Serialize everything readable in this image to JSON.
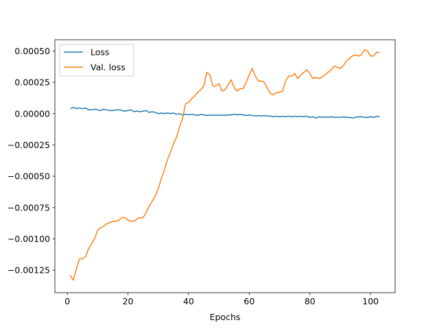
{
  "chart_data": {
    "type": "line",
    "title": "",
    "xlabel": "Epochs",
    "ylabel": "",
    "xlim": [
      -4.1,
      108.1
    ],
    "ylim": [
      -0.00143,
      0.00059
    ],
    "x_ticks": [
      0,
      20,
      40,
      60,
      80,
      100
    ],
    "x_tick_labels": [
      "0",
      "20",
      "40",
      "60",
      "80",
      "100"
    ],
    "y_ticks": [
      -0.00125,
      -0.001,
      -0.00075,
      -0.0005,
      -0.00025,
      0,
      0.00025,
      0.0005
    ],
    "y_tick_labels": [
      "−0.00125",
      "−0.00100",
      "−0.00075",
      "−0.00050",
      "−0.00025",
      "0.00000",
      "0.00025",
      "0.00050"
    ],
    "grid": false,
    "legend_position": "top-left",
    "series": [
      {
        "name": "Loss",
        "color": "#1f77b4",
        "x": [
          1,
          2,
          3,
          4,
          5,
          6,
          7,
          8,
          9,
          10,
          11,
          12,
          13,
          14,
          15,
          16,
          17,
          18,
          19,
          20,
          21,
          22,
          23,
          24,
          25,
          26,
          27,
          28,
          29,
          30,
          31,
          32,
          33,
          34,
          35,
          36,
          37,
          38,
          39,
          40,
          41,
          42,
          43,
          44,
          45,
          46,
          47,
          48,
          49,
          50,
          51,
          52,
          53,
          54,
          55,
          56,
          57,
          58,
          59,
          60,
          61,
          62,
          63,
          64,
          65,
          66,
          67,
          68,
          69,
          70,
          71,
          72,
          73,
          74,
          75,
          76,
          77,
          78,
          79,
          80,
          81,
          82,
          83,
          84,
          85,
          86,
          87,
          88,
          89,
          90,
          91,
          92,
          93,
          94,
          95,
          96,
          97,
          98,
          99,
          100,
          101,
          102,
          103
        ],
        "y": [
          4e-05,
          5e-05,
          4e-05,
          4.5e-05,
          4e-05,
          4.5e-05,
          3e-05,
          3e-05,
          3.5e-05,
          3e-05,
          2.5e-05,
          3.5e-05,
          3e-05,
          2.5e-05,
          2.5e-05,
          3e-05,
          3e-05,
          2.5e-05,
          2e-05,
          2.5e-05,
          3e-05,
          1.5e-05,
          2e-05,
          1.5e-05,
          2e-05,
          2.5e-05,
          1e-05,
          1.5e-05,
          1e-05,
          0.0,
          5e-06,
          0.0,
          5e-06,
          0.0,
          5e-06,
          -5e-06,
          0.0,
          -1e-05,
          -5e-06,
          -1e-05,
          -5e-06,
          -1e-05,
          -1.5e-05,
          -5e-06,
          -1e-05,
          -1.5e-05,
          -1e-05,
          -1.5e-05,
          -1e-05,
          -1.5e-05,
          -1e-05,
          -1.5e-05,
          -1e-05,
          -1e-05,
          -5e-06,
          -1e-05,
          -5e-06,
          -1e-05,
          -1.5e-05,
          -1e-05,
          -1.5e-05,
          -2e-05,
          -1.5e-05,
          -2e-05,
          -1.5e-05,
          -2e-05,
          -2e-05,
          -2.5e-05,
          -2e-05,
          -2.5e-05,
          -2e-05,
          -2.5e-05,
          -2e-05,
          -2.5e-05,
          -2e-05,
          -2.5e-05,
          -2e-05,
          -2.5e-05,
          -2e-05,
          -3e-05,
          -2.5e-05,
          -3.5e-05,
          -2.5e-05,
          -3e-05,
          -2.5e-05,
          -3e-05,
          -2.5e-05,
          -3e-05,
          -3e-05,
          -3e-05,
          -2.5e-05,
          -3e-05,
          -3e-05,
          -3.5e-05,
          -3e-05,
          -2.5e-05,
          -2.5e-05,
          -3e-05,
          -3e-05,
          -2.5e-05,
          -3e-05,
          -2e-05,
          -2.5e-05
        ],
        "_ignore": true
      },
      {
        "name": "Val. loss",
        "color": "#ff7f0e",
        "x": [
          1,
          2,
          3,
          4,
          5,
          6,
          7,
          8,
          9,
          10,
          11,
          12,
          13,
          14,
          15,
          16,
          17,
          18,
          19,
          20,
          21,
          22,
          23,
          24,
          25,
          26,
          27,
          28,
          29,
          30,
          31,
          32,
          33,
          34,
          35,
          36,
          37,
          38,
          39,
          40,
          41,
          42,
          43,
          44,
          45,
          46,
          47,
          48,
          49,
          50,
          51,
          52,
          53,
          54,
          55,
          56,
          57,
          58,
          59,
          60,
          61,
          62,
          63,
          64,
          65,
          66,
          67,
          68,
          69,
          70,
          71,
          72,
          73,
          74,
          75,
          76,
          77,
          78,
          79,
          80,
          81,
          82,
          83,
          84,
          85,
          86,
          87,
          88,
          89,
          90,
          91,
          92,
          93,
          94,
          95,
          96,
          97,
          98,
          99,
          100,
          101,
          102,
          103
        ],
        "y": [
          -0.00129,
          -0.00133,
          -0.00124,
          -0.00116,
          -0.00116,
          -0.00114,
          -0.00108,
          -0.00104,
          -0.001,
          -0.00093,
          -0.00091,
          -0.0009,
          -0.00088,
          -0.00087,
          -0.00086,
          -0.00086,
          -0.00085,
          -0.00083,
          -0.00083,
          -0.00085,
          -0.00086,
          -0.00086,
          -0.00084,
          -0.00083,
          -0.00083,
          -0.00079,
          -0.00074,
          -0.0007,
          -0.00066,
          -0.0006,
          -0.00052,
          -0.00045,
          -0.00037,
          -0.00031,
          -0.00024,
          -0.00019,
          -0.00011,
          -4e-05,
          8e-05,
          9e-05,
          0.00012,
          0.00014,
          0.00017,
          0.00019,
          0.00022,
          0.00033,
          0.00031,
          0.00022,
          0.00022,
          0.00024,
          0.00018,
          0.00019,
          0.00023,
          0.00027,
          0.00021,
          0.00018,
          0.0002,
          0.0002,
          0.00025,
          0.00031,
          0.00036,
          0.0003,
          0.00026,
          0.00026,
          0.00025,
          0.0002,
          0.00016,
          0.00015,
          0.00017,
          0.00017,
          0.00018,
          0.00026,
          0.0003,
          0.0003,
          0.00032,
          0.00028,
          0.00031,
          0.00033,
          0.00035,
          0.00032,
          0.00028,
          0.00029,
          0.00028,
          0.00029,
          0.00031,
          0.00033,
          0.00035,
          0.00038,
          0.00037,
          0.00036,
          0.00038,
          0.00042,
          0.00044,
          0.00046,
          0.00047,
          0.00046,
          0.00047,
          0.00051,
          0.0005,
          0.00046,
          0.00046,
          0.00049,
          0.00049
        ]
      }
    ]
  }
}
